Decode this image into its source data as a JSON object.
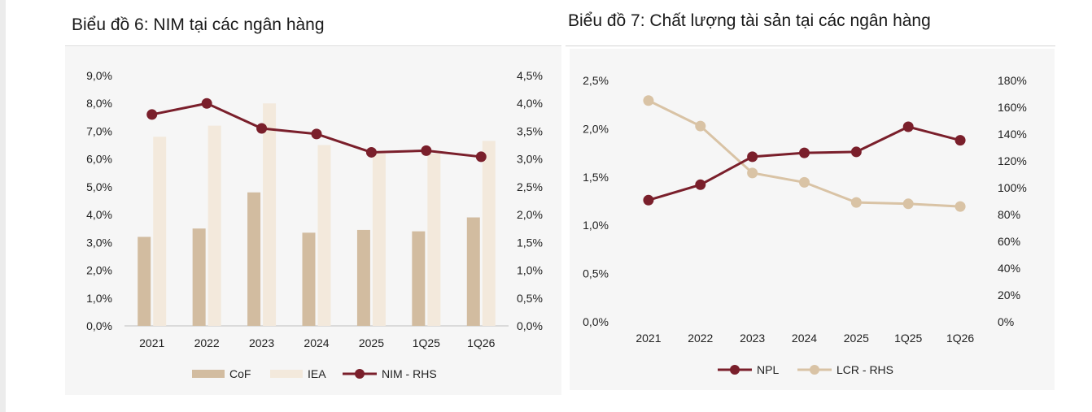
{
  "chart_data": [
    {
      "type": "bar",
      "title": "Biểu đồ 6: NIM tại các ngân hàng",
      "categories": [
        "2021",
        "2022",
        "2023",
        "2024",
        "2025",
        "1Q25",
        "1Q26"
      ],
      "y_left": {
        "ticks": [
          "0,0%",
          "1,0%",
          "2,0%",
          "3,0%",
          "4,0%",
          "5,0%",
          "6,0%",
          "7,0%",
          "8,0%",
          "9,0%"
        ],
        "range": [
          0,
          9
        ]
      },
      "y_right": {
        "ticks": [
          "0,0%",
          "0,5%",
          "1,0%",
          "1,5%",
          "2,0%",
          "2,5%",
          "3,0%",
          "3,5%",
          "4,0%",
          "4,5%"
        ],
        "range": [
          0,
          4.5
        ]
      },
      "series": [
        {
          "name": "CoF",
          "type": "bar",
          "axis": "left",
          "color": "#d2bca0",
          "values": [
            3.2,
            3.5,
            4.8,
            3.35,
            3.45,
            3.4,
            3.9
          ]
        },
        {
          "name": "IEA",
          "type": "bar",
          "axis": "left",
          "color": "#f3e9dc",
          "values": [
            6.8,
            7.2,
            8.0,
            6.5,
            6.2,
            6.2,
            6.65
          ]
        },
        {
          "name": "NIM - RHS",
          "type": "line",
          "axis": "right",
          "color": "#7a1f2b",
          "values": [
            3.8,
            4.0,
            3.55,
            3.45,
            3.12,
            3.15,
            3.04
          ]
        }
      ],
      "legend": [
        "CoF",
        "IEA",
        "NIM - RHS"
      ],
      "legend_position": "bottom",
      "grid": false
    },
    {
      "type": "line",
      "title": "Biểu đồ 7: Chất lượng tài sản tại các ngân hàng",
      "categories": [
        "2021",
        "2022",
        "2023",
        "2024",
        "2025",
        "1Q25",
        "1Q26"
      ],
      "y_left": {
        "ticks": [
          "0,0%",
          "0,5%",
          "1,0%",
          "1,5%",
          "2,0%",
          "2,5%"
        ],
        "range": [
          0,
          2.5
        ]
      },
      "y_right": {
        "ticks": [
          "0%",
          "20%",
          "40%",
          "60%",
          "80%",
          "100%",
          "120%",
          "140%",
          "160%",
          "180%"
        ],
        "range": [
          0,
          180
        ]
      },
      "series": [
        {
          "name": "NPL",
          "type": "line",
          "axis": "left",
          "color": "#7a1f2b",
          "values": [
            1.26,
            1.42,
            1.71,
            1.75,
            1.76,
            2.02,
            1.88
          ]
        },
        {
          "name": "LCR - RHS",
          "type": "line",
          "axis": "right",
          "color": "#d9c3a5",
          "values": [
            165,
            146,
            111,
            104,
            89,
            88,
            86
          ]
        }
      ],
      "legend": [
        "NPL",
        "LCR - RHS"
      ],
      "legend_position": "bottom",
      "grid": false
    }
  ]
}
